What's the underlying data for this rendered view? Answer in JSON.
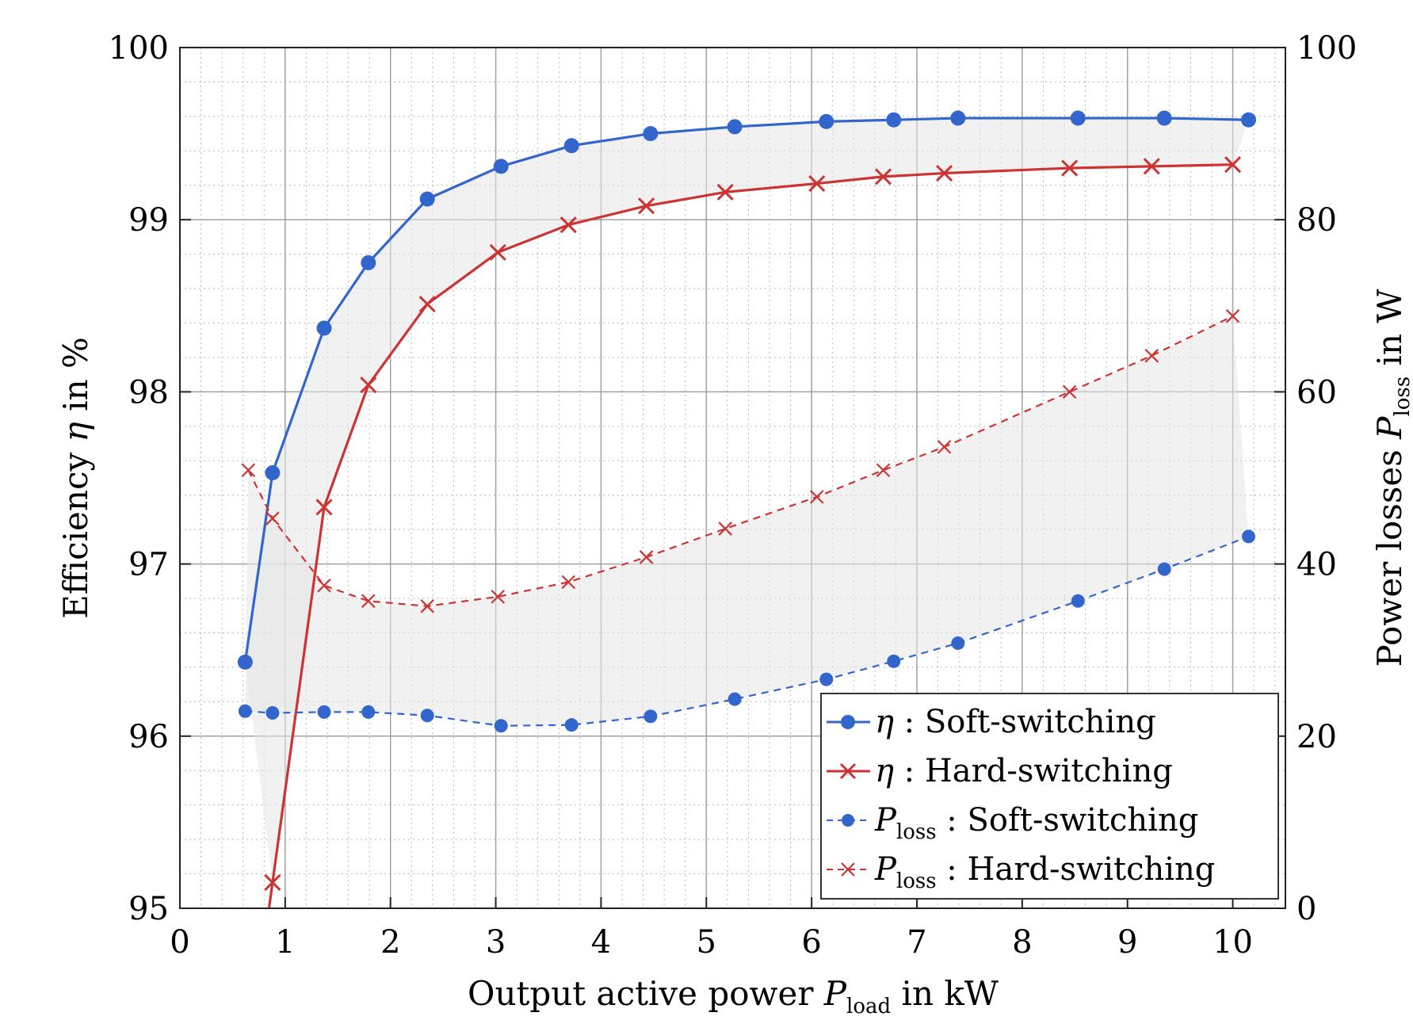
{
  "chart_data": {
    "type": "line",
    "title": "",
    "xlabel": {
      "main": "Output active power ",
      "var": "P",
      "sub": "load",
      "unit": " in kW"
    },
    "ylabel_left": {
      "main": "Efficiency ",
      "var": "η",
      "unit": " in %"
    },
    "ylabel_right": {
      "main": "Power losses ",
      "var": "P",
      "sub": "loss",
      "unit": " in W"
    },
    "xlim": [
      0,
      10.5
    ],
    "ylim_left": [
      95,
      100
    ],
    "ylim_right": [
      0,
      100
    ],
    "x_ticks": [
      "0",
      "1",
      "2",
      "3",
      "4",
      "5",
      "6",
      "7",
      "8",
      "9",
      "10"
    ],
    "y_left_ticks": [
      "95",
      "96",
      "97",
      "98",
      "99",
      "100"
    ],
    "y_right_ticks": [
      "0",
      "20",
      "40",
      "60",
      "80",
      "100"
    ],
    "grid": true,
    "legend_position": "bottom-right",
    "colors": {
      "soft": "#3366cc",
      "hard": "#cc3333",
      "shade": "#e6e6e6"
    },
    "series": [
      {
        "name": "eta_soft",
        "legend": {
          "var": "η",
          "sep": " : ",
          "text": "Soft-switching"
        },
        "axis": "left",
        "style": "solid",
        "marker": "dot",
        "color": "#3366cc",
        "x": [
          0.62,
          0.88,
          1.37,
          1.79,
          2.35,
          3.05,
          3.72,
          4.47,
          5.27,
          6.14,
          6.78,
          7.39,
          8.53,
          9.35,
          10.15
        ],
        "y": [
          96.43,
          97.53,
          98.37,
          98.75,
          99.12,
          99.31,
          99.43,
          99.5,
          99.54,
          99.57,
          99.58,
          99.59,
          99.59,
          99.59,
          99.58
        ]
      },
      {
        "name": "eta_hard",
        "legend": {
          "var": "η",
          "sep": " : ",
          "text": "Hard-switching"
        },
        "axis": "left",
        "style": "solid",
        "marker": "cross",
        "color": "#cc3333",
        "x": [
          0.88,
          1.37,
          1.79,
          2.35,
          3.02,
          3.69,
          4.43,
          5.18,
          6.05,
          6.68,
          7.26,
          8.45,
          9.23,
          10.0
        ],
        "y": [
          95.15,
          97.33,
          98.04,
          98.51,
          98.81,
          98.97,
          99.08,
          99.16,
          99.21,
          99.25,
          99.27,
          99.3,
          99.31,
          99.32
        ]
      },
      {
        "name": "ploss_soft",
        "legend": {
          "var": "P",
          "sub": "loss",
          "sep": " : ",
          "text": "Soft-switching"
        },
        "axis": "right",
        "style": "dashed",
        "marker": "dot",
        "color": "#3366cc",
        "x": [
          0.62,
          0.88,
          1.37,
          1.79,
          2.35,
          3.05,
          3.72,
          4.47,
          5.27,
          6.14,
          6.78,
          7.39,
          8.53,
          9.35,
          10.15
        ],
        "y": [
          22.9,
          22.7,
          22.8,
          22.8,
          22.4,
          21.2,
          21.3,
          22.3,
          24.3,
          26.6,
          28.7,
          30.8,
          35.7,
          39.4,
          43.2
        ]
      },
      {
        "name": "ploss_hard",
        "legend": {
          "var": "P",
          "sub": "loss",
          "sep": " : ",
          "text": "Hard-switching"
        },
        "axis": "right",
        "style": "dashed",
        "marker": "cross",
        "color": "#cc3333",
        "x": [
          0.65,
          0.88,
          1.37,
          1.79,
          2.35,
          3.02,
          3.69,
          4.43,
          5.18,
          6.05,
          6.68,
          7.26,
          8.45,
          9.23,
          10.0
        ],
        "y": [
          50.9,
          45.3,
          37.5,
          35.7,
          35.1,
          36.2,
          37.9,
          40.8,
          44.1,
          47.8,
          50.9,
          53.6,
          60.0,
          64.2,
          68.8
        ]
      }
    ]
  }
}
